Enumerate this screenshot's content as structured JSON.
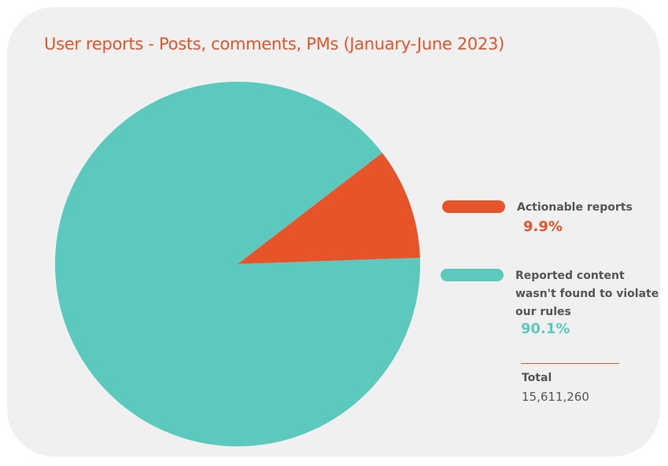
{
  "chart_data": {
    "type": "pie",
    "title": "User reports - Posts, comments, PMs (January-June 2023)",
    "slices": [
      {
        "label": "Actionable reports",
        "value": 9.9,
        "display": "9.9%",
        "color": "#e8542a"
      },
      {
        "label": "Reported content wasn't found to violate our rules",
        "label_lines": [
          "Reported content",
          "wasn't found to violate",
          "our rules"
        ],
        "value": 90.1,
        "display": "90.1%",
        "color": "#5bc9bd"
      }
    ],
    "total": {
      "label": "Total",
      "value": "15,611,260"
    },
    "legend_position": "right"
  },
  "colors": {
    "accent": "#e8542a",
    "teal": "#5bc9bd",
    "card_background": "#f0f0f0",
    "text": "#555555"
  }
}
